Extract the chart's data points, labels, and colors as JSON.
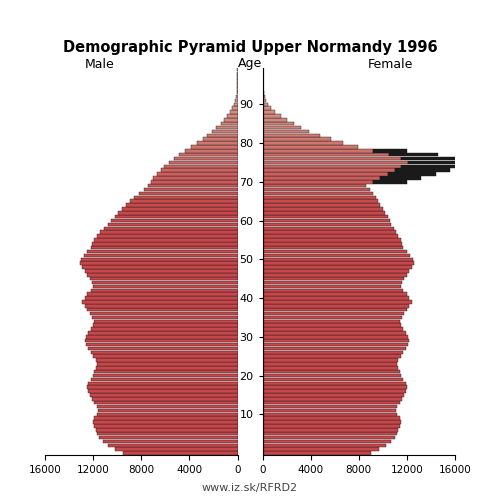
{
  "title": "Demographic Pyramid Upper Normandy 1996",
  "male_label": "Male",
  "female_label": "Female",
  "age_label": "Age",
  "footer": "www.iz.sk/RFRD2",
  "xlim": 16000,
  "xticks": [
    0,
    4000,
    8000,
    12000,
    16000
  ],
  "age_ticks": [
    10,
    20,
    30,
    40,
    50,
    60,
    70,
    80,
    90
  ],
  "bar_color_red": "#c8474a",
  "bar_color_pink": "#d4a090",
  "bar_color_black": "#1a1a1a",
  "background_color": "#ffffff",
  "male": [
    9500,
    10200,
    10800,
    11200,
    11500,
    11700,
    11800,
    11900,
    12000,
    11900,
    11700,
    11600,
    11700,
    11900,
    12100,
    12300,
    12400,
    12500,
    12400,
    12200,
    12000,
    11900,
    11800,
    11700,
    11800,
    12000,
    12200,
    12400,
    12600,
    12700,
    12600,
    12400,
    12200,
    12000,
    11900,
    12100,
    12300,
    12500,
    12700,
    12900,
    12700,
    12500,
    12200,
    12000,
    12100,
    12300,
    12500,
    12700,
    12900,
    13100,
    13000,
    12800,
    12500,
    12200,
    12100,
    11900,
    11700,
    11400,
    11100,
    10800,
    10500,
    10200,
    9900,
    9600,
    9300,
    8900,
    8600,
    8200,
    7800,
    7400,
    7200,
    7000,
    6700,
    6400,
    6100,
    5700,
    5300,
    4900,
    4400,
    3900,
    3400,
    2900,
    2500,
    2100,
    1750,
    1400,
    1100,
    850,
    620,
    440,
    300,
    200,
    130,
    80,
    45,
    25,
    12,
    6,
    2,
    1
  ],
  "female": [
    9000,
    9700,
    10300,
    10700,
    11000,
    11200,
    11300,
    11400,
    11500,
    11400,
    11200,
    11100,
    11200,
    11400,
    11600,
    11800,
    11900,
    12000,
    11900,
    11700,
    11500,
    11400,
    11300,
    11200,
    11300,
    11500,
    11700,
    11900,
    12100,
    12200,
    12100,
    11900,
    11700,
    11500,
    11400,
    11600,
    11800,
    12000,
    12200,
    12400,
    12200,
    12000,
    11700,
    11500,
    11600,
    11800,
    12000,
    12200,
    12400,
    12600,
    12500,
    12300,
    12000,
    11700,
    11600,
    11500,
    11300,
    11100,
    10900,
    10700,
    10600,
    10400,
    10200,
    10000,
    9800,
    9600,
    9400,
    9200,
    8900,
    8600,
    9200,
    9800,
    10400,
    11000,
    11500,
    12100,
    11500,
    10500,
    9200,
    7900,
    6700,
    5700,
    4800,
    3900,
    3200,
    2600,
    2000,
    1500,
    1050,
    720,
    490,
    320,
    200,
    120,
    65,
    35,
    15,
    7,
    2,
    1
  ],
  "female_black": [
    0,
    0,
    0,
    0,
    0,
    0,
    0,
    0,
    0,
    0,
    0,
    0,
    0,
    0,
    0,
    0,
    0,
    0,
    0,
    0,
    0,
    0,
    0,
    0,
    0,
    0,
    0,
    0,
    0,
    0,
    0,
    0,
    0,
    0,
    0,
    0,
    0,
    0,
    0,
    0,
    0,
    0,
    0,
    0,
    0,
    0,
    0,
    0,
    0,
    0,
    0,
    0,
    0,
    0,
    0,
    0,
    0,
    0,
    0,
    0,
    0,
    0,
    0,
    0,
    0,
    0,
    0,
    0,
    0,
    0,
    2800,
    3400,
    4000,
    4600,
    5100,
    5700,
    5100,
    4100,
    2800,
    0,
    0,
    0,
    0,
    0,
    0,
    0,
    0,
    0,
    0,
    0,
    0,
    0,
    0,
    0,
    0,
    0,
    0,
    0,
    0,
    0
  ],
  "male_black": [
    0,
    0,
    0,
    0,
    0,
    0,
    0,
    0,
    0,
    0,
    0,
    0,
    0,
    0,
    0,
    0,
    0,
    0,
    0,
    0,
    0,
    0,
    0,
    0,
    0,
    0,
    0,
    0,
    0,
    0,
    0,
    0,
    0,
    0,
    0,
    0,
    0,
    0,
    0,
    0,
    0,
    0,
    0,
    0,
    0,
    0,
    0,
    0,
    13100,
    0,
    0,
    0,
    0,
    0,
    0,
    0,
    0,
    0,
    0,
    0,
    0,
    0,
    0,
    0,
    0,
    0,
    0,
    0,
    0,
    0,
    0,
    0,
    0,
    0,
    0,
    0,
    0,
    0,
    0,
    0,
    0,
    0,
    0,
    0,
    0,
    0,
    0,
    0,
    0,
    0,
    0,
    0,
    0,
    0,
    0,
    0,
    0,
    0,
    0,
    0
  ]
}
